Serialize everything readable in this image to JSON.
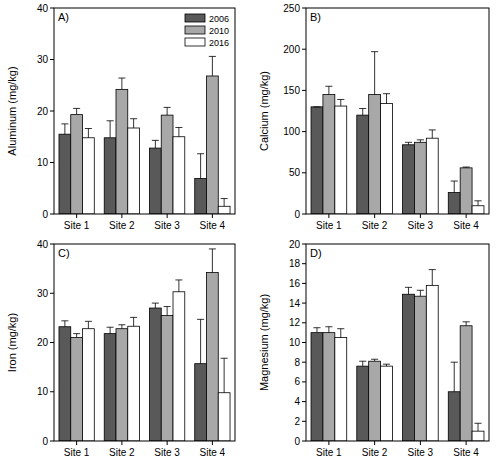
{
  "chart_data": [
    {
      "type": "bar",
      "title": "A)",
      "ylabel": "Aluminum (mg/kg)",
      "categories": [
        "Site 1",
        "Site 2",
        "Site 3",
        "Site 4"
      ],
      "series": [
        {
          "name": "2006",
          "color": "#595959",
          "values": [
            15.5,
            14.8,
            12.8,
            6.9
          ],
          "errors": [
            2.0,
            3.3,
            1.5,
            4.8
          ]
        },
        {
          "name": "2010",
          "color": "#a8a8a8",
          "values": [
            19.3,
            24.2,
            19.2,
            26.8
          ],
          "errors": [
            1.2,
            2.2,
            1.5,
            3.8
          ]
        },
        {
          "name": "2016",
          "color": "#ffffff",
          "values": [
            14.8,
            16.7,
            15.0,
            1.5
          ],
          "errors": [
            1.8,
            1.8,
            1.8,
            1.5
          ]
        }
      ],
      "ylim": [
        0,
        40
      ],
      "yticks": [
        0,
        10,
        20,
        30,
        40
      ],
      "legend": "upper right"
    },
    {
      "type": "bar",
      "title": "B)",
      "ylabel": "Calcium (mg/kg)",
      "categories": [
        "Site 1",
        "Site 2",
        "Site 3",
        "Site 4"
      ],
      "series": [
        {
          "color": "#595959",
          "values": [
            130,
            120,
            84,
            26
          ],
          "errors": [
            0,
            8,
            3,
            14
          ]
        },
        {
          "color": "#a8a8a8",
          "values": [
            145,
            145,
            87,
            56
          ],
          "errors": [
            10,
            52,
            3,
            1
          ]
        },
        {
          "color": "#ffffff",
          "values": [
            131,
            134,
            92,
            10
          ],
          "errors": [
            8,
            12,
            10,
            6
          ]
        }
      ],
      "ylim": [
        0,
        250
      ],
      "yticks": [
        0,
        50,
        100,
        150,
        200,
        250
      ]
    },
    {
      "type": "bar",
      "title": "C)",
      "ylabel": "Iron (mg/kg)",
      "categories": [
        "Site 1",
        "Site 2",
        "Site 3",
        "Site 4"
      ],
      "series": [
        {
          "color": "#595959",
          "values": [
            23.2,
            21.8,
            27.0,
            15.7
          ],
          "errors": [
            1.2,
            1.3,
            1.0,
            9.0
          ]
        },
        {
          "color": "#a8a8a8",
          "values": [
            21.0,
            22.8,
            25.5,
            34.2
          ],
          "errors": [
            0.8,
            0.8,
            1.8,
            4.8
          ]
        },
        {
          "color": "#ffffff",
          "values": [
            22.8,
            23.3,
            30.3,
            9.8
          ],
          "errors": [
            1.5,
            1.8,
            2.4,
            7.0
          ]
        }
      ],
      "ylim": [
        0,
        40
      ],
      "yticks": [
        0,
        10,
        20,
        30,
        40
      ]
    },
    {
      "type": "bar",
      "title": "D)",
      "ylabel": "Magnesium (mg/kg)",
      "categories": [
        "Site 1",
        "Site 2",
        "Site 3",
        "Site 4"
      ],
      "series": [
        {
          "color": "#595959",
          "values": [
            11.0,
            7.6,
            14.9,
            5.0
          ],
          "errors": [
            0.5,
            0.5,
            0.7,
            3.0
          ]
        },
        {
          "color": "#a8a8a8",
          "values": [
            11.0,
            8.1,
            14.7,
            11.7
          ],
          "errors": [
            0.6,
            0.2,
            0.6,
            0.4
          ]
        },
        {
          "color": "#ffffff",
          "values": [
            10.5,
            7.6,
            15.8,
            1.0
          ],
          "errors": [
            0.9,
            0.2,
            1.6,
            0.8
          ]
        }
      ],
      "ylim": [
        0,
        20
      ],
      "yticks": [
        0,
        2,
        4,
        6,
        8,
        10,
        12,
        14,
        16,
        18,
        20
      ]
    }
  ]
}
